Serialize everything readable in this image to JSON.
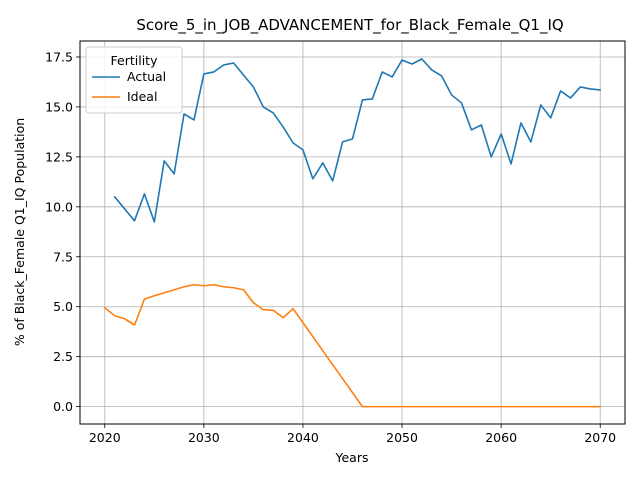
{
  "chart_data": {
    "type": "line",
    "title": "Score_5_in_JOB_ADVANCEMENT_for_Black_Female_Q1_IQ",
    "xlabel": "Years",
    "ylabel": "% of Black_Female Q1_IQ Population",
    "xlim": [
      2017.5,
      2072.5
    ],
    "ylim": [
      -0.87,
      18.3
    ],
    "xticks": [
      2020,
      2030,
      2040,
      2050,
      2060,
      2070
    ],
    "yticks": [
      0.0,
      2.5,
      5.0,
      7.5,
      10.0,
      12.5,
      15.0,
      17.5
    ],
    "xtick_labels": [
      "2020",
      "2030",
      "2040",
      "2050",
      "2060",
      "2070"
    ],
    "ytick_labels": [
      "0.0",
      "2.5",
      "5.0",
      "7.5",
      "10.0",
      "12.5",
      "15.0",
      "17.5"
    ],
    "grid": true,
    "legend": {
      "title": "Fertility",
      "placement": "top-left"
    },
    "series": [
      {
        "name": "Actual",
        "color": "#1f77b4",
        "x": [
          2021,
          2022,
          2023,
          2024,
          2025,
          2026,
          2027,
          2028,
          2029,
          2030,
          2031,
          2032,
          2033,
          2034,
          2035,
          2036,
          2037,
          2038,
          2039,
          2040,
          2041,
          2042,
          2043,
          2044,
          2045,
          2046,
          2047,
          2048,
          2049,
          2050,
          2051,
          2052,
          2053,
          2054,
          2055,
          2056,
          2057,
          2058,
          2059,
          2060,
          2061,
          2062,
          2063,
          2064,
          2065,
          2066,
          2067,
          2068,
          2069,
          2070
        ],
        "values": [
          10.5,
          9.9,
          9.3,
          10.65,
          9.25,
          12.3,
          11.65,
          14.65,
          14.35,
          16.65,
          16.75,
          17.1,
          17.2,
          16.6,
          16.0,
          15.0,
          14.7,
          14.0,
          13.2,
          12.85,
          11.4,
          12.2,
          11.3,
          13.25,
          13.4,
          15.35,
          15.4,
          16.75,
          16.5,
          17.35,
          17.15,
          17.4,
          16.85,
          16.55,
          15.6,
          15.2,
          13.85,
          14.1,
          12.5,
          13.65,
          12.15,
          14.2,
          13.25,
          15.1,
          14.45,
          15.8,
          15.45,
          16.0,
          15.9,
          15.85
        ]
      },
      {
        "name": "Ideal",
        "color": "#ff7f0e",
        "x": [
          2020,
          2021,
          2022,
          2023,
          2024,
          2025,
          2026,
          2027,
          2028,
          2029,
          2030,
          2031,
          2032,
          2033,
          2034,
          2035,
          2036,
          2037,
          2038,
          2039,
          2040,
          2041,
          2042,
          2043,
          2044,
          2045,
          2046,
          2047,
          2048,
          2049,
          2050,
          2051,
          2052,
          2053,
          2054,
          2055,
          2056,
          2057,
          2058,
          2059,
          2060,
          2061,
          2062,
          2063,
          2064,
          2065,
          2066,
          2067,
          2068,
          2069,
          2070
        ],
        "values": [
          4.95,
          4.55,
          4.4,
          4.08,
          5.38,
          5.55,
          5.7,
          5.85,
          6.0,
          6.1,
          6.05,
          6.1,
          6.0,
          5.95,
          5.85,
          5.2,
          4.85,
          4.82,
          4.45,
          4.9,
          4.2,
          3.5,
          2.8,
          2.1,
          1.4,
          0.7,
          0.0,
          0.0,
          0.0,
          0.0,
          0.0,
          0.0,
          0.0,
          0.0,
          0.0,
          0.0,
          0.0,
          0.0,
          0.0,
          0.0,
          0.0,
          0.0,
          0.0,
          0.0,
          0.0,
          0.0,
          0.0,
          0.0,
          0.0,
          0.0,
          0.0
        ]
      }
    ]
  }
}
